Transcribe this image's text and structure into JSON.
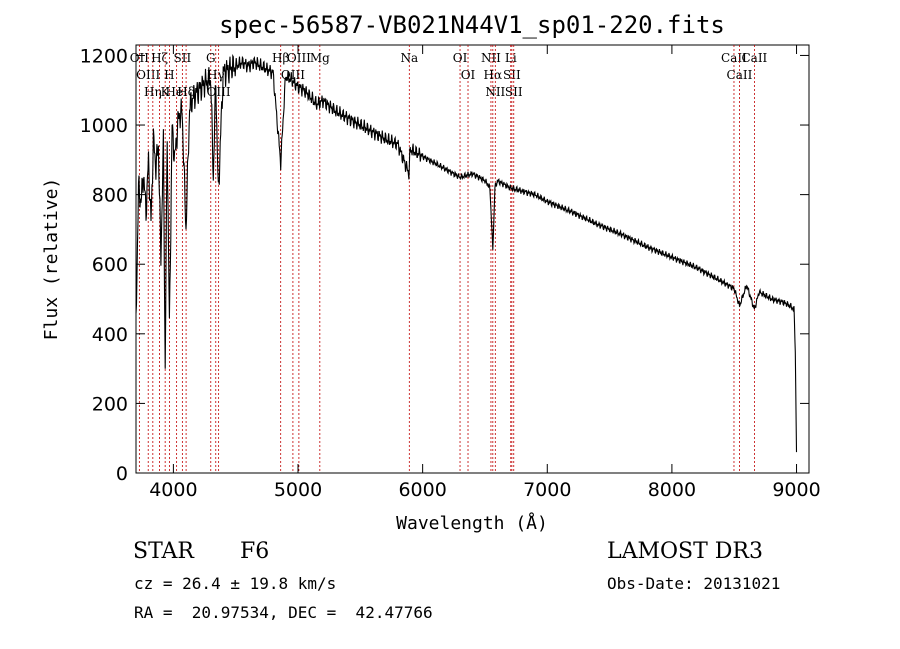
{
  "chart_data": {
    "type": "line",
    "title": "spec-56587-VB021N44V1_sp01-220.fits",
    "xlabel": "Wavelength (Å)",
    "ylabel": "Flux (relative)",
    "xlim": [
      3700,
      9100
    ],
    "ylim": [
      0,
      1230
    ],
    "xticks": [
      4000,
      5000,
      6000,
      7000,
      8000,
      9000
    ],
    "yticks": [
      0,
      200,
      400,
      600,
      800,
      1000,
      1200
    ],
    "grid": false,
    "series": [
      {
        "name": "spectrum",
        "x": [
          3700,
          3720,
          3740,
          3760,
          3780,
          3800,
          3820,
          3840,
          3860,
          3880,
          3900,
          3920,
          3934,
          3950,
          3968,
          3990,
          4010,
          4040,
          4070,
          4101,
          4130,
          4160,
          4200,
          4250,
          4300,
          4320,
          4340,
          4360,
          4400,
          4450,
          4500,
          4550,
          4600,
          4650,
          4700,
          4750,
          4800,
          4861,
          4900,
          4950,
          5000,
          5050,
          5100,
          5150,
          5200,
          5300,
          5400,
          5500,
          5600,
          5700,
          5800,
          5890,
          5900,
          5950,
          6000,
          6100,
          6200,
          6300,
          6400,
          6500,
          6540,
          6563,
          6580,
          6600,
          6700,
          6800,
          6900,
          7000,
          7200,
          7400,
          7600,
          7800,
          8000,
          8200,
          8400,
          8500,
          8542,
          8600,
          8662,
          8700,
          8800,
          8900,
          8950,
          8980,
          8990,
          9000
        ],
        "y": [
          430,
          820,
          780,
          860,
          750,
          900,
          720,
          960,
          880,
          940,
          620,
          950,
          300,
          980,
          420,
          1000,
          900,
          1020,
          1040,
          700,
          1050,
          1080,
          1100,
          1120,
          1130,
          850,
          1130,
          800,
          1150,
          1160,
          1170,
          1180,
          1170,
          1180,
          1170,
          1160,
          1150,
          890,
          1140,
          1130,
          1110,
          1100,
          1080,
          1060,
          1070,
          1040,
          1020,
          1000,
          980,
          960,
          945,
          860,
          930,
          920,
          910,
          890,
          870,
          850,
          860,
          840,
          820,
          640,
          820,
          840,
          820,
          810,
          800,
          780,
          750,
          715,
          685,
          650,
          620,
          590,
          550,
          530,
          480,
          540,
          470,
          520,
          500,
          490,
          480,
          470,
          350,
          60
        ]
      }
    ],
    "lines": [
      {
        "wl": 3727,
        "label": "OII"
      },
      {
        "wl": 3798,
        "label": "OIII"
      },
      {
        "wl": 3835,
        "label": "Hη"
      },
      {
        "wl": 3889,
        "label": "Hζ"
      },
      {
        "wl": 3934,
        "label": "K"
      },
      {
        "wl": 3968,
        "label": "H"
      },
      {
        "wl": 4026,
        "label": "HeI"
      },
      {
        "wl": 4072,
        "label": "SII"
      },
      {
        "wl": 4102,
        "label": "Hδ"
      },
      {
        "wl": 4300,
        "label": "G"
      },
      {
        "wl": 4340,
        "label": "Hγ"
      },
      {
        "wl": 4363,
        "label": "OIII"
      },
      {
        "wl": 4861,
        "label": "Hβ"
      },
      {
        "wl": 4959,
        "label": "OIII"
      },
      {
        "wl": 5007,
        "label": "OIII"
      },
      {
        "wl": 5175,
        "label": "Mg"
      },
      {
        "wl": 5893,
        "label": "Na"
      },
      {
        "wl": 6300,
        "label": "OI"
      },
      {
        "wl": 6364,
        "label": "OI"
      },
      {
        "wl": 6548,
        "label": "NII"
      },
      {
        "wl": 6563,
        "label": "Hα"
      },
      {
        "wl": 6583,
        "label": "NII"
      },
      {
        "wl": 6707,
        "label": "Li"
      },
      {
        "wl": 6716,
        "label": "SII"
      },
      {
        "wl": 6731,
        "label": "SII"
      },
      {
        "wl": 8498,
        "label": "CaII"
      },
      {
        "wl": 8542,
        "label": "CaII"
      },
      {
        "wl": 8662,
        "label": "CaII"
      }
    ]
  },
  "footer": {
    "class_label": "STAR",
    "subclass": "F6",
    "survey": "LAMOST DR3",
    "redshift": "cz = 26.4 ± 19.8 km/s",
    "obs_date": "Obs-Date: 20131021",
    "coords": "RA =  20.97534, DEC =  42.47766"
  },
  "colors": {
    "line_marker": "#c00000",
    "spectrum": "#000000"
  }
}
